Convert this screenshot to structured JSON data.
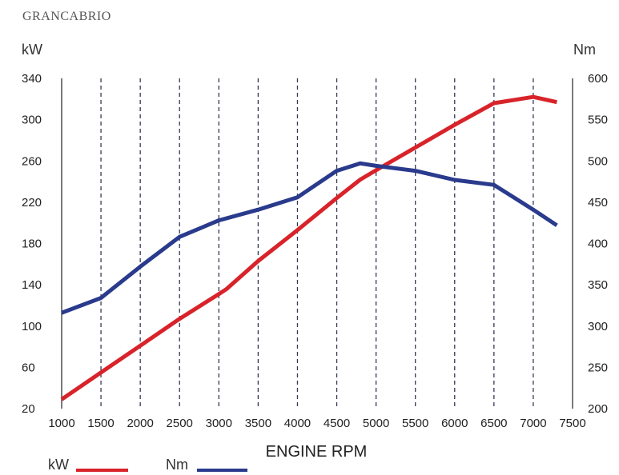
{
  "chart_data": {
    "type": "line",
    "title": "GRANCABRIO",
    "xlabel": "ENGINE RPM",
    "ylabel_left": "kW",
    "ylabel_right": "Nm",
    "xlim": [
      1000,
      7500
    ],
    "ylim_left": [
      20,
      340
    ],
    "ylim_right": [
      200,
      600
    ],
    "x_ticks": [
      "1000",
      "1500",
      "2000",
      "2500",
      "3000",
      "3500",
      "4000",
      "4500",
      "5000",
      "5500",
      "6000",
      "6500",
      "7000",
      "7500"
    ],
    "y_left_ticks": [
      "20",
      "60",
      "100",
      "140",
      "180",
      "220",
      "260",
      "300",
      "340"
    ],
    "y_right_ticks": [
      "200",
      "250",
      "300",
      "350",
      "400",
      "450",
      "500",
      "550",
      "600"
    ],
    "grid": "vertical dashed",
    "series": [
      {
        "name": "kW",
        "axis": "left",
        "color": "#d8232a",
        "x": [
          1000,
          1500,
          2000,
          2500,
          3000,
          3100,
          3500,
          4000,
          4500,
          4800,
          5000,
          5500,
          6000,
          6500,
          7000,
          7300
        ],
        "y": [
          29,
          55,
          81,
          107,
          131,
          136,
          163,
          193,
          224,
          242,
          251,
          273,
          295,
          316,
          322,
          317
        ]
      },
      {
        "name": "Nm",
        "axis": "right",
        "color": "#2a3a8c",
        "x": [
          1000,
          1500,
          2000,
          2500,
          3000,
          3500,
          4000,
          4500,
          4800,
          5000,
          5500,
          6000,
          6500,
          7000,
          7300
        ],
        "y": [
          316,
          334,
          372,
          408,
          428,
          441,
          456,
          488,
          497,
          494,
          488,
          477,
          471,
          441,
          422
        ]
      }
    ],
    "legend_position": "bottom-left"
  }
}
